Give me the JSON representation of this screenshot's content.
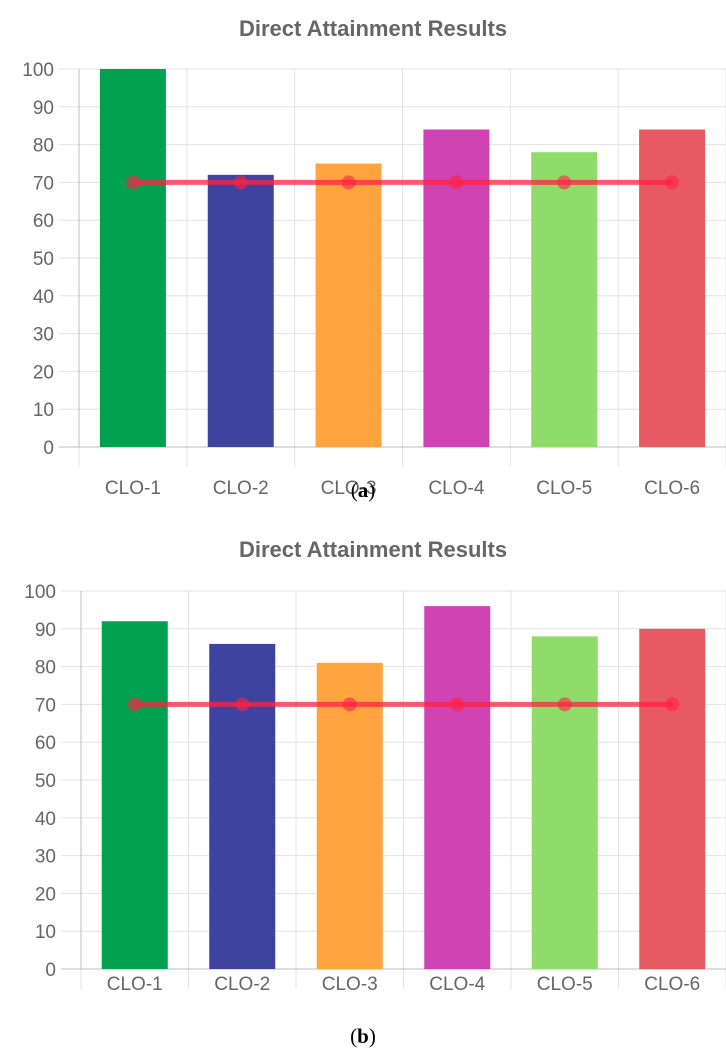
{
  "chart_data": [
    {
      "type": "bar",
      "title": "Direct Attainment Results",
      "caption": {
        "open": "(",
        "letter": "a",
        "close": ")"
      },
      "categories": [
        "CLO-1",
        "CLO-2",
        "CLO-3",
        "CLO-4",
        "CLO-5",
        "CLO-6"
      ],
      "values": [
        100,
        72,
        75,
        84,
        78,
        84
      ],
      "bar_colors": [
        "#00a14f",
        "#3f43a0",
        "#ffa43f",
        "#d043b2",
        "#8fdc6a",
        "#e85a62"
      ],
      "threshold": {
        "type": "line",
        "values": [
          70,
          70,
          70,
          70,
          70,
          70
        ],
        "color": "#ff2244"
      },
      "ylim": [
        0,
        100
      ],
      "yticks": [
        "0",
        "10",
        "20",
        "30",
        "40",
        "50",
        "60",
        "70",
        "80",
        "90",
        "100"
      ],
      "grid": true,
      "xlabel": "",
      "ylabel": ""
    },
    {
      "type": "bar",
      "title": "Direct Attainment Results",
      "caption": {
        "open": "(",
        "letter": "b",
        "close": ")"
      },
      "categories": [
        "CLO-1",
        "CLO-2",
        "CLO-3",
        "CLO-4",
        "CLO-5",
        "CLO-6"
      ],
      "values": [
        92,
        86,
        81,
        96,
        88,
        90
      ],
      "bar_colors": [
        "#00a14f",
        "#3f43a0",
        "#ffa43f",
        "#d043b2",
        "#8fdc6a",
        "#e85a62"
      ],
      "threshold": {
        "type": "line",
        "values": [
          70,
          70,
          70,
          70,
          70,
          70
        ],
        "color": "#ff2244"
      },
      "ylim": [
        0,
        100
      ],
      "yticks": [
        "0",
        "10",
        "20",
        "30",
        "40",
        "50",
        "60",
        "70",
        "80",
        "90",
        "100"
      ],
      "grid": true,
      "xlabel": "",
      "ylabel": ""
    }
  ]
}
